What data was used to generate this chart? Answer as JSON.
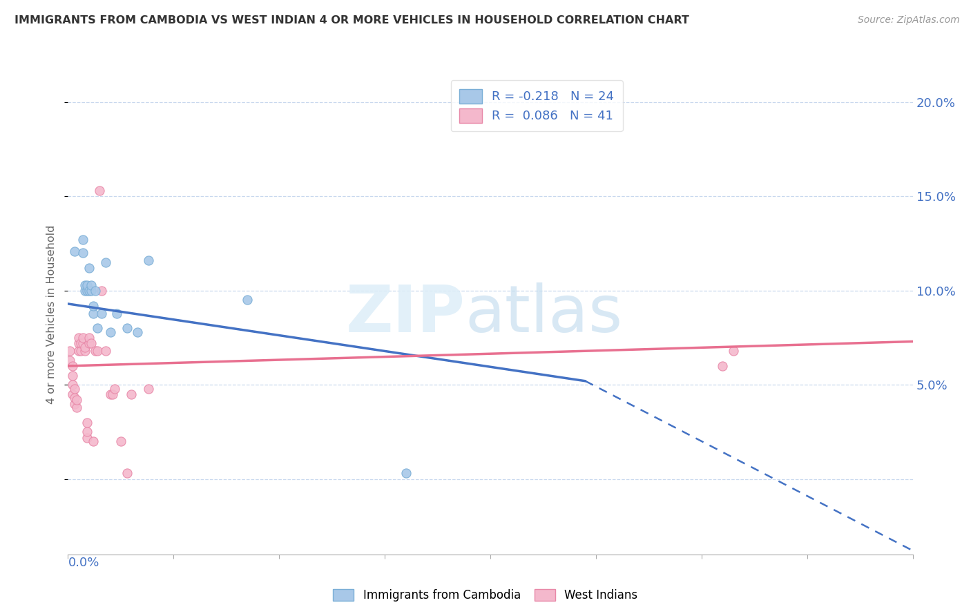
{
  "title": "IMMIGRANTS FROM CAMBODIA VS WEST INDIAN 4 OR MORE VEHICLES IN HOUSEHOLD CORRELATION CHART",
  "source": "Source: ZipAtlas.com",
  "ylabel": "4 or more Vehicles in Household",
  "ytick_vals": [
    0.0,
    0.05,
    0.1,
    0.15,
    0.2
  ],
  "ytick_labels": [
    "",
    "5.0%",
    "10.0%",
    "15.0%",
    "20.0%"
  ],
  "xlim": [
    0.0,
    0.4
  ],
  "ylim": [
    -0.04,
    0.215
  ],
  "watermark_zip": "ZIP",
  "watermark_atlas": "atlas",
  "legend_entry_1": "R = -0.218   N = 24",
  "legend_entry_2": "R =  0.086   N = 41",
  "cambodia_scatter_x": [
    0.003,
    0.007,
    0.007,
    0.008,
    0.008,
    0.009,
    0.009,
    0.01,
    0.01,
    0.011,
    0.011,
    0.012,
    0.012,
    0.013,
    0.014,
    0.016,
    0.018,
    0.02,
    0.023,
    0.028,
    0.033,
    0.038,
    0.085,
    0.16
  ],
  "cambodia_scatter_y": [
    0.121,
    0.127,
    0.12,
    0.1,
    0.103,
    0.1,
    0.103,
    0.1,
    0.112,
    0.1,
    0.103,
    0.088,
    0.092,
    0.1,
    0.08,
    0.088,
    0.115,
    0.078,
    0.088,
    0.08,
    0.078,
    0.116,
    0.095,
    0.003
  ],
  "westindian_scatter_x": [
    0.001,
    0.001,
    0.002,
    0.002,
    0.002,
    0.002,
    0.003,
    0.003,
    0.003,
    0.004,
    0.004,
    0.005,
    0.005,
    0.005,
    0.006,
    0.006,
    0.007,
    0.007,
    0.008,
    0.008,
    0.009,
    0.009,
    0.009,
    0.01,
    0.01,
    0.011,
    0.012,
    0.013,
    0.014,
    0.015,
    0.016,
    0.018,
    0.02,
    0.021,
    0.022,
    0.025,
    0.028,
    0.03,
    0.038,
    0.31,
    0.315
  ],
  "westindian_scatter_y": [
    0.068,
    0.063,
    0.045,
    0.05,
    0.055,
    0.06,
    0.04,
    0.043,
    0.048,
    0.038,
    0.042,
    0.068,
    0.072,
    0.075,
    0.068,
    0.072,
    0.072,
    0.075,
    0.068,
    0.07,
    0.022,
    0.025,
    0.03,
    0.072,
    0.075,
    0.072,
    0.02,
    0.068,
    0.068,
    0.153,
    0.1,
    0.068,
    0.045,
    0.045,
    0.048,
    0.02,
    0.003,
    0.045,
    0.048,
    0.06,
    0.068
  ],
  "cam_line_x1": 0.0,
  "cam_line_y1": 0.093,
  "cam_line_x2": 0.4,
  "cam_line_y2": -0.038,
  "cam_line_solid_end_x": 0.245,
  "cam_line_solid_end_y": 0.052,
  "wi_line_x1": 0.0,
  "wi_line_y1": 0.06,
  "wi_line_x2": 0.4,
  "wi_line_y2": 0.073,
  "cambodia_color": "#a8c8e8",
  "cambodia_edge_color": "#7aaed6",
  "westindian_color": "#f4b8cc",
  "westindian_edge_color": "#e888a8",
  "cam_line_color": "#4472c4",
  "wi_line_color": "#e87090",
  "bg_color": "#ffffff",
  "grid_color": "#c8d8ee",
  "axis_label_color": "#4472c4",
  "title_color": "#333333",
  "scatter_size": 90
}
